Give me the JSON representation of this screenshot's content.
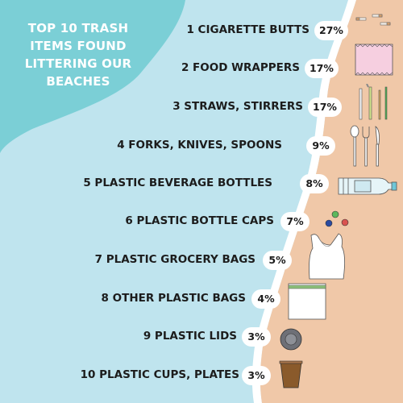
{
  "title_lines": [
    "TOP 10 TRASH",
    "ITEMS FOUND",
    "LITTERING OUR",
    "BEACHES"
  ],
  "watermark": "356447399",
  "colors": {
    "sea": "#bfe4ee",
    "teal": "#7bcfd6",
    "sand": "#f0c8a8",
    "foam": "#ffffff"
  },
  "items": [
    {
      "label": "1 CIGARETTE BUTTS",
      "percent": "27%",
      "icon": "cigarette-butts-icon"
    },
    {
      "label": "2 FOOD WRAPPERS",
      "percent": "17%",
      "icon": "food-wrapper-icon"
    },
    {
      "label": "3 STRAWS, STIRRERS",
      "percent": "17%",
      "icon": "straws-icon"
    },
    {
      "label": "4 FORKS, KNIVES, SPOONS",
      "percent": "9%",
      "icon": "cutlery-icon"
    },
    {
      "label": "5 PLASTIC BEVERAGE BOTTLES",
      "percent": "8%",
      "icon": "plastic-bottle-icon"
    },
    {
      "label": "6 PLASTIC BOTTLE CAPS",
      "percent": "7%",
      "icon": "bottle-caps-icon"
    },
    {
      "label": "7 PLASTIC GROCERY BAGS",
      "percent": "5%",
      "icon": "grocery-bag-icon"
    },
    {
      "label": "8 OTHER PLASTIC BAGS",
      "percent": "4%",
      "icon": "zip-bag-icon"
    },
    {
      "label": "9 PLASTIC LIDS",
      "percent": "3%",
      "icon": "plastic-lid-icon"
    },
    {
      "label": "10 PLASTIC CUPS, PLATES",
      "percent": "3%",
      "icon": "plastic-cup-icon"
    }
  ]
}
